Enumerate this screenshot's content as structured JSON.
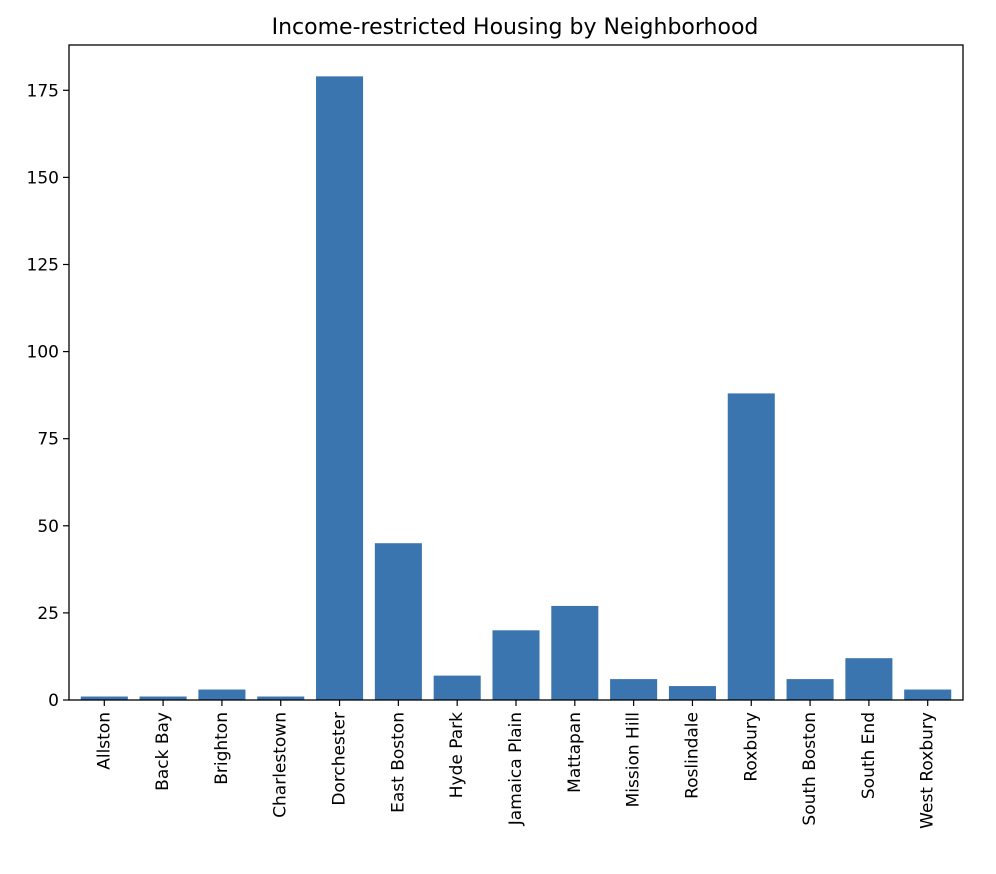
{
  "chart_data": {
    "type": "bar",
    "title": "Income-restricted Housing by Neighborhood",
    "xlabel": "",
    "ylabel": "",
    "categories": [
      "Allston",
      "Back Bay",
      "Brighton",
      "Charlestown",
      "Dorchester",
      "East Boston",
      "Hyde Park",
      "Jamaica Plain",
      "Mattapan",
      "Mission Hill",
      "Roslindale",
      "Roxbury",
      "South Boston",
      "South End",
      "West Roxbury"
    ],
    "values": [
      1,
      1,
      3,
      1,
      179,
      45,
      7,
      20,
      27,
      6,
      4,
      88,
      6,
      12,
      3
    ],
    "ylim": [
      0,
      188
    ],
    "yticks": [
      0,
      25,
      50,
      75,
      100,
      125,
      150,
      175
    ],
    "grid": false,
    "bar_color": "#3a75b0"
  }
}
